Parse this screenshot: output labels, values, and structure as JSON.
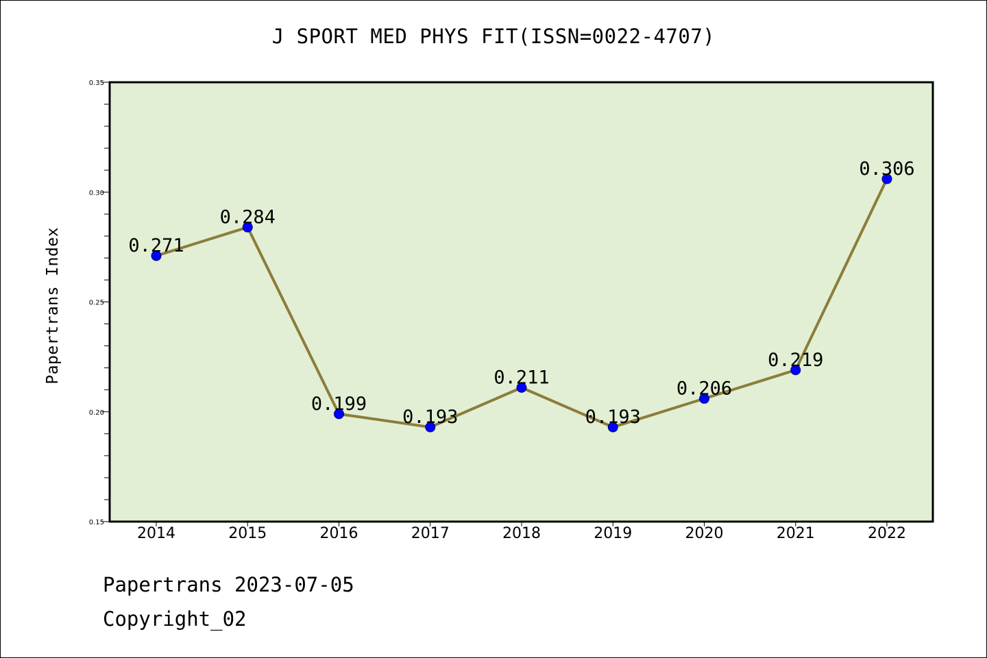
{
  "title": "J SPORT MED PHYS FIT(ISSN=0022-4707)",
  "footer": {
    "line1": "Papertrans 2023-07-05",
    "line2": "Copyright_02"
  },
  "colors": {
    "plot_background": "#e2efd4",
    "line": "#8b7d3a",
    "marker": "#0000ff",
    "axis": "#000000"
  },
  "chart_data": {
    "type": "line",
    "title": "J SPORT MED PHYS FIT(ISSN=0022-4707)",
    "xlabel": "",
    "ylabel": "Papertrans Index",
    "categories": [
      "2014",
      "2015",
      "2016",
      "2017",
      "2018",
      "2019",
      "2020",
      "2021",
      "2022"
    ],
    "values": [
      0.271,
      0.284,
      0.199,
      0.193,
      0.211,
      0.193,
      0.206,
      0.219,
      0.306
    ],
    "data_labels": [
      "0.271",
      "0.284",
      "0.199",
      "0.193",
      "0.211",
      "0.193",
      "0.206",
      "0.219",
      "0.306"
    ],
    "ylim": [
      0.15,
      0.35
    ],
    "yticks": [
      0.15,
      0.2,
      0.25,
      0.3,
      0.35
    ],
    "ytick_labels": [
      "0.15",
      "0.20",
      "0.25",
      "0.30",
      "0.35"
    ],
    "grid": false,
    "legend": false,
    "marker": "circle"
  }
}
